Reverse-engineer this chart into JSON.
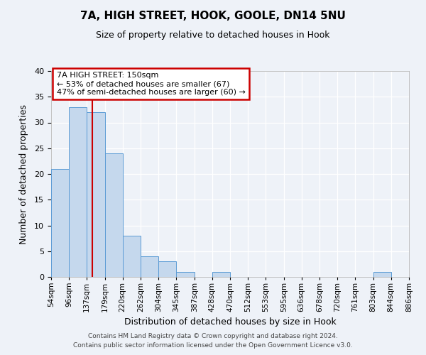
{
  "title": "7A, HIGH STREET, HOOK, GOOLE, DN14 5NU",
  "subtitle": "Size of property relative to detached houses in Hook",
  "xlabel": "Distribution of detached houses by size in Hook",
  "ylabel": "Number of detached properties",
  "bin_edges": [
    54,
    96,
    137,
    179,
    220,
    262,
    304,
    345,
    387,
    428,
    470,
    512,
    553,
    595,
    636,
    678,
    720,
    761,
    803,
    844,
    886
  ],
  "bin_labels": [
    "54sqm",
    "96sqm",
    "137sqm",
    "179sqm",
    "220sqm",
    "262sqm",
    "304sqm",
    "345sqm",
    "387sqm",
    "428sqm",
    "470sqm",
    "512sqm",
    "553sqm",
    "595sqm",
    "636sqm",
    "678sqm",
    "720sqm",
    "761sqm",
    "803sqm",
    "844sqm",
    "886sqm"
  ],
  "counts": [
    21,
    33,
    32,
    24,
    8,
    4,
    3,
    1,
    0,
    1,
    0,
    0,
    0,
    0,
    0,
    0,
    0,
    0,
    1,
    0
  ],
  "bar_color": "#c5d8ed",
  "bar_edge_color": "#5b9bd5",
  "redline_x": 150,
  "annotation_title": "7A HIGH STREET: 150sqm",
  "annotation_line1": "← 53% of detached houses are smaller (67)",
  "annotation_line2": "47% of semi-detached houses are larger (60) →",
  "annotation_box_color": "#ffffff",
  "annotation_box_edge": "#cc0000",
  "redline_color": "#cc0000",
  "ylim": [
    0,
    40
  ],
  "yticks": [
    0,
    5,
    10,
    15,
    20,
    25,
    30,
    35,
    40
  ],
  "bg_color": "#eef2f8",
  "footer1": "Contains HM Land Registry data © Crown copyright and database right 2024.",
  "footer2": "Contains public sector information licensed under the Open Government Licence v3.0."
}
